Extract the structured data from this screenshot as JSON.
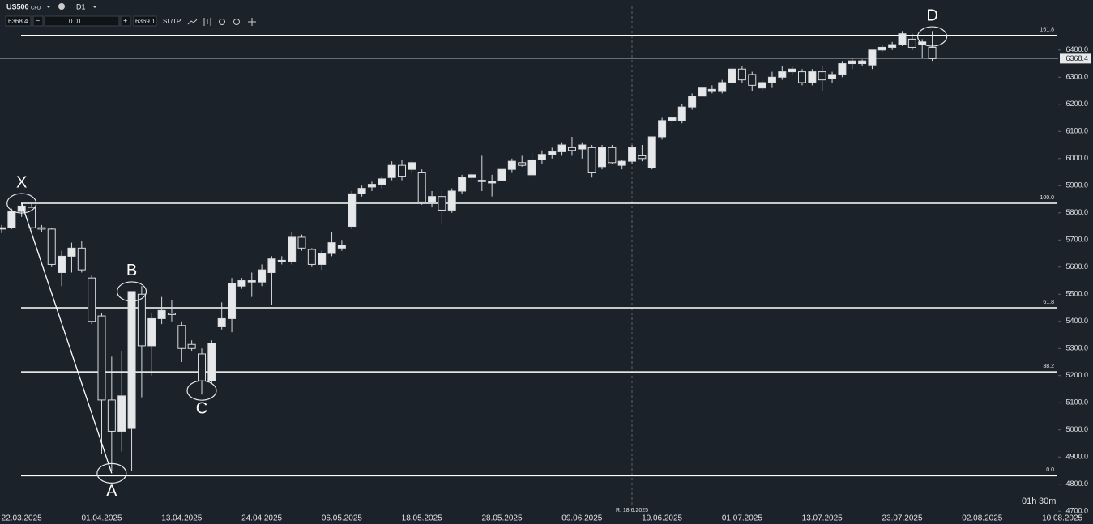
{
  "toolbar": {
    "symbol": "US500",
    "kind": "CFD",
    "timeframe": "D1",
    "bid": "6368.4",
    "volume": "0.01",
    "ask": "6369.1",
    "sltp": "SL/TP"
  },
  "chart_data": {
    "type": "candlestick",
    "categories": [
      null,
      null,
      "22.03.2025",
      null,
      null,
      null,
      null,
      null,
      null,
      null,
      "01.04.2025",
      null,
      null,
      null,
      null,
      null,
      null,
      null,
      "13.04.2025",
      null,
      null,
      null,
      null,
      null,
      null,
      null,
      "24.04.2025",
      null,
      null,
      null,
      null,
      null,
      null,
      null,
      "06.05.2025",
      null,
      null,
      null,
      null,
      null,
      null,
      null,
      "18.05.2025",
      null,
      null,
      null,
      null,
      null,
      null,
      null,
      "28.05.2025",
      null,
      null,
      null,
      null,
      null,
      null,
      null,
      "09.06.2025",
      null,
      null,
      null,
      null,
      null,
      null,
      null,
      "19.06.2025",
      null,
      null,
      null,
      null,
      null,
      null,
      null,
      "01.07.2025",
      null,
      null,
      null,
      null,
      null,
      null,
      null,
      "13.07.2025",
      null,
      null,
      null,
      null,
      null,
      null,
      null,
      "23.07.2025",
      null,
      null,
      null,
      null,
      null,
      null,
      null,
      "02.08.2025",
      null,
      null,
      null,
      null,
      null,
      null,
      null,
      "10.08.2025"
    ],
    "open": [
      5740,
      5745,
      5805,
      5820,
      5745,
      5740,
      5580,
      5640,
      5670,
      5560,
      5420,
      5110,
      4995,
      5005,
      5500,
      5310,
      5410,
      5430,
      5385,
      5315,
      5280,
      5180,
      5380,
      5410,
      5530,
      5545,
      5545,
      5580,
      5620,
      5620,
      5710,
      5665,
      5610,
      5650,
      5670,
      5750,
      5870,
      5895,
      5905,
      5930,
      5975,
      5960,
      5950,
      5840,
      5860,
      5810,
      5880,
      5930,
      5915,
      5910,
      5920,
      5960,
      5985,
      5940,
      5995,
      6015,
      6025,
      6040,
      6035,
      6040,
      5970,
      6040,
      5975,
      5990,
      6010,
      5965,
      6080,
      6140,
      6140,
      6190,
      6230,
      6250,
      6250,
      6280,
      6330,
      6310,
      6260,
      6280,
      6300,
      6320,
      6320,
      6280,
      6320,
      6295,
      6310,
      6350,
      6350,
      6345,
      6400,
      6410,
      6420,
      6440,
      6420,
      6410,
      null,
      null,
      null,
      null,
      null,
      null,
      null,
      null,
      null,
      null,
      null,
      null,
      null
    ],
    "high": [
      5755,
      5815,
      5835,
      5840,
      5755,
      5745,
      5660,
      5690,
      5695,
      5570,
      5430,
      5270,
      5290,
      5510,
      5530,
      5430,
      5490,
      5480,
      5400,
      5330,
      5300,
      5330,
      5470,
      5560,
      5560,
      5580,
      5610,
      5640,
      5640,
      5730,
      5720,
      5670,
      5660,
      5730,
      5700,
      5880,
      5900,
      5915,
      5935,
      5990,
      5995,
      5990,
      5960,
      5880,
      5880,
      5890,
      5940,
      5950,
      6010,
      5940,
      5970,
      6000,
      6010,
      6020,
      6030,
      6040,
      6060,
      6080,
      6060,
      6050,
      6050,
      6050,
      5995,
      6050,
      6050,
      6080,
      6150,
      6160,
      6200,
      6240,
      6270,
      6270,
      6290,
      6340,
      6340,
      6320,
      6290,
      6320,
      6340,
      6340,
      6330,
      6330,
      6340,
      6320,
      6360,
      6370,
      6365,
      6400,
      6420,
      6430,
      6470,
      6460,
      6440,
      6470,
      null,
      null,
      null,
      null,
      null,
      null,
      null,
      null,
      null,
      null,
      null,
      null,
      null
    ],
    "low": [
      5725,
      5740,
      5785,
      5740,
      5730,
      5600,
      5530,
      5580,
      5580,
      5390,
      4910,
      4850,
      4920,
      4850,
      5120,
      5200,
      5390,
      5400,
      5250,
      5290,
      5130,
      5170,
      5370,
      5360,
      5520,
      5490,
      5530,
      5460,
      5610,
      5610,
      5660,
      5600,
      5590,
      5640,
      5660,
      5740,
      5860,
      5880,
      5890,
      5920,
      5920,
      5950,
      5830,
      5820,
      5760,
      5800,
      5870,
      5920,
      5880,
      5860,
      5870,
      5950,
      5970,
      5930,
      5980,
      6000,
      6010,
      6010,
      6000,
      5930,
      5960,
      5980,
      5960,
      5980,
      5990,
      5960,
      6070,
      6120,
      6130,
      6180,
      6220,
      6240,
      6240,
      6270,
      6280,
      6250,
      6250,
      6260,
      6290,
      6310,
      6270,
      6270,
      6250,
      6280,
      6300,
      6330,
      6340,
      6330,
      6395,
      6400,
      6415,
      6400,
      6370,
      6360,
      null,
      null,
      null,
      null,
      null,
      null,
      null,
      null,
      null,
      null,
      null,
      null,
      null
    ],
    "close": [
      5745,
      5805,
      5825,
      5745,
      5740,
      5610,
      5640,
      5670,
      5590,
      5400,
      5110,
      4995,
      5125,
      5510,
      5310,
      5410,
      5440,
      5425,
      5300,
      5300,
      5180,
      5320,
      5410,
      5540,
      5550,
      5550,
      5590,
      5630,
      5625,
      5710,
      5670,
      5610,
      5650,
      5690,
      5680,
      5870,
      5890,
      5905,
      5925,
      5975,
      5935,
      5985,
      5840,
      5860,
      5810,
      5880,
      5930,
      5940,
      5920,
      5915,
      5960,
      5990,
      5975,
      5995,
      6015,
      6025,
      6050,
      6030,
      6050,
      5950,
      6040,
      5985,
      5990,
      6040,
      6000,
      6080,
      6140,
      6150,
      6190,
      6230,
      6260,
      6255,
      6280,
      6330,
      6290,
      6270,
      6280,
      6300,
      6320,
      6330,
      6280,
      6320,
      6290,
      6310,
      6350,
      6360,
      6360,
      6400,
      6410,
      6420,
      6460,
      6410,
      6430,
      6368.4,
      null,
      null,
      null,
      null,
      null,
      null,
      null,
      null,
      null,
      null,
      null,
      null,
      null
    ],
    "ylim": [
      4650,
      6480
    ],
    "yticks": [
      {
        "value": 4700,
        "label": "4700.0"
      },
      {
        "value": 4800,
        "label": "4800.0"
      },
      {
        "value": 4900,
        "label": "4900.0"
      },
      {
        "value": 5000,
        "label": "5000.0"
      },
      {
        "value": 5100,
        "label": "5100.0"
      },
      {
        "value": 5200,
        "label": "5200.0"
      },
      {
        "value": 5300,
        "label": "5300.0"
      },
      {
        "value": 5400,
        "label": "5400.0"
      },
      {
        "value": 5500,
        "label": "5500.0"
      },
      {
        "value": 5600,
        "label": "5600.0"
      },
      {
        "value": 5700,
        "label": "5700.0"
      },
      {
        "value": 5800,
        "label": "5800.0"
      },
      {
        "value": 5900,
        "label": "5900.0"
      },
      {
        "value": 6000,
        "label": "6000.0"
      },
      {
        "value": 6100,
        "label": "6100.0"
      },
      {
        "value": 6200,
        "label": "6200.0"
      },
      {
        "value": 6300,
        "label": "6300.0"
      },
      {
        "value": 6400,
        "label": "6400.0"
      }
    ],
    "current_price": {
      "value": 6368.4,
      "label": "6368.4"
    },
    "levels": [
      {
        "label": "161.8",
        "value": 6454
      },
      {
        "label": "100.0",
        "value": 5835
      },
      {
        "label": "61.8",
        "value": 5450
      },
      {
        "label": "38.2",
        "value": 5214
      },
      {
        "label": "0.0",
        "value": 4831
      }
    ],
    "pattern": [
      {
        "label": "X",
        "category": 2,
        "value": 5835
      },
      {
        "label": "A",
        "category": 11,
        "value": 4840
      },
      {
        "label": "B",
        "category": 13,
        "value": 5510
      },
      {
        "label": "C",
        "category": 20,
        "value": 5145
      },
      {
        "label": "D",
        "category": 93,
        "value": 6450
      }
    ],
    "crosshair_label": "R: 18.6.2025",
    "countdown": {
      "hours": "01h",
      "minutes": "30m"
    },
    "bull_color": "#e6e8ea",
    "bear_color": "#1b2229",
    "line_color": "#ffffff"
  }
}
